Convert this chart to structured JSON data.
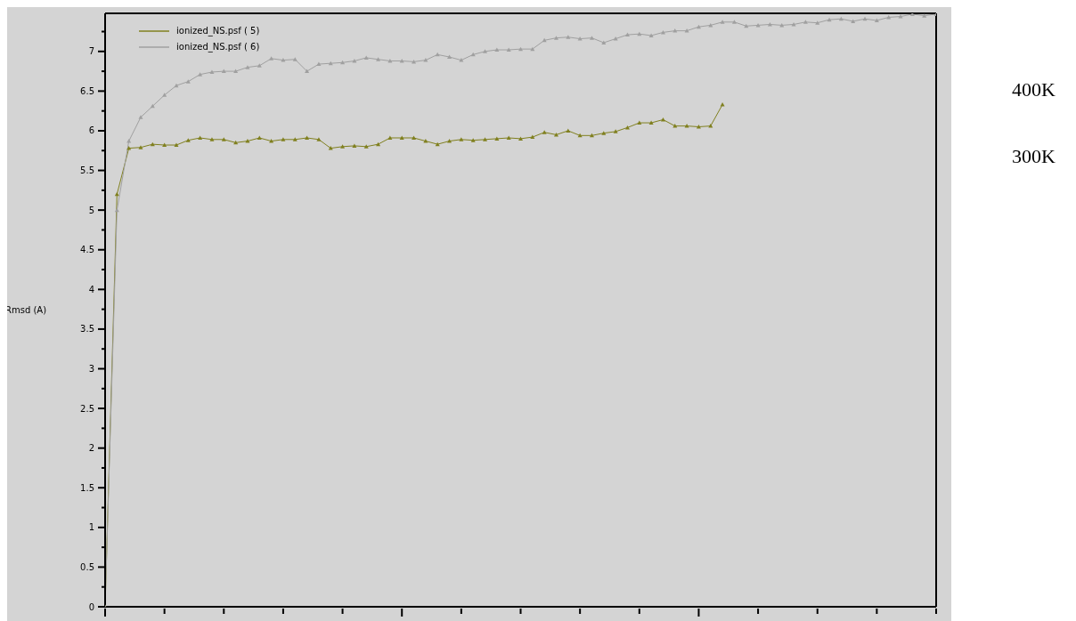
{
  "chart_data": {
    "type": "line",
    "ylabel": "Rmsd (A)",
    "categories": [
      null,
      null,
      null,
      null,
      null,
      null,
      null,
      null,
      null,
      null,
      null,
      null,
      null,
      null,
      null,
      null,
      null,
      null,
      null,
      null,
      null,
      null,
      null,
      null,
      null,
      null,
      null,
      null,
      null,
      null,
      null,
      null,
      null,
      null,
      null,
      null,
      null,
      null,
      null,
      null,
      null,
      null,
      null,
      null,
      null,
      null,
      null,
      null,
      null,
      null,
      null,
      null,
      null,
      null,
      null,
      null,
      null,
      null,
      null,
      null,
      null,
      null,
      null,
      null,
      null,
      null,
      null,
      null,
      null,
      null,
      null
    ],
    "series": [
      {
        "name": "ionized_NS.psf ( 5)",
        "color": "#80801f",
        "values": [
          0,
          5.2,
          5.78,
          5.79,
          5.83,
          5.82,
          5.82,
          5.88,
          5.91,
          5.89,
          5.89,
          5.85,
          5.87,
          5.91,
          5.87,
          5.89,
          5.89,
          5.91,
          5.89,
          5.78,
          5.8,
          5.81,
          5.8,
          5.83,
          5.91,
          5.91,
          5.91,
          5.87,
          5.83,
          5.87,
          5.89,
          5.88,
          5.89,
          5.9,
          5.91,
          5.9,
          5.92,
          5.98,
          5.95,
          6.0,
          5.94,
          5.94,
          5.97,
          5.99,
          6.04,
          6.1,
          6.1,
          6.14,
          6.06,
          6.06,
          6.05,
          6.06,
          6.33,
          null,
          null,
          null,
          null,
          null,
          null,
          null,
          null,
          null,
          null,
          null,
          null,
          null,
          null,
          null,
          null,
          null,
          null
        ]
      },
      {
        "name": "ionized_NS.psf ( 6)",
        "color": "#a0a0a0",
        "values": [
          0,
          5.0,
          5.87,
          6.17,
          6.31,
          6.45,
          6.57,
          6.62,
          6.71,
          6.74,
          6.75,
          6.75,
          6.8,
          6.82,
          6.91,
          6.89,
          6.9,
          6.75,
          6.84,
          6.85,
          6.86,
          6.88,
          6.92,
          6.9,
          6.88,
          6.88,
          6.87,
          6.89,
          6.96,
          6.93,
          6.89,
          6.96,
          7.0,
          7.02,
          7.02,
          7.03,
          7.03,
          7.14,
          7.17,
          7.18,
          7.16,
          7.17,
          7.11,
          7.16,
          7.21,
          7.22,
          7.2,
          7.24,
          7.26,
          7.26,
          7.31,
          7.33,
          7.37,
          7.37,
          7.32,
          7.33,
          7.34,
          7.33,
          7.34,
          7.37,
          7.36,
          7.4,
          7.41,
          7.38,
          7.41,
          7.39,
          7.43,
          7.44,
          7.47,
          7.45,
          7.47
        ]
      }
    ],
    "ylim": [
      0,
      7.48
    ],
    "yticks": [
      0,
      {
        "value": 0.25,
        "label": null
      },
      0.5,
      {
        "value": 0.75,
        "label": null
      },
      1,
      {
        "value": 1.25,
        "label": null
      },
      1.5,
      {
        "value": 1.75,
        "label": null
      },
      2,
      {
        "value": 2.25,
        "label": null
      },
      2.5,
      {
        "value": 2.75,
        "label": null
      },
      3,
      {
        "value": 3.25,
        "label": null
      },
      3.5,
      {
        "value": 3.75,
        "label": null
      },
      4,
      {
        "value": 4.25,
        "label": null
      },
      4.5,
      {
        "value": 4.75,
        "label": null
      },
      5,
      {
        "value": 5.25,
        "label": null
      },
      5.5,
      {
        "value": 5.75,
        "label": null
      },
      6,
      {
        "value": 6.25,
        "label": null
      },
      6.5,
      {
        "value": 6.75,
        "label": null
      },
      7,
      {
        "value": 7.25,
        "label": null
      }
    ],
    "grid": false,
    "legend": "top left",
    "marker": "triangle",
    "annotations": [
      "400K",
      "300K"
    ]
  }
}
